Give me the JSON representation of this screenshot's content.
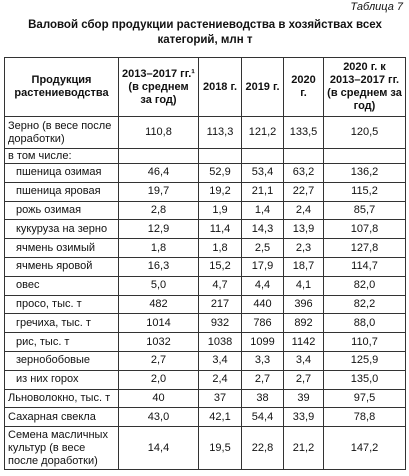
{
  "header": {
    "label": "Таблица 7",
    "title": "Валовой сбор продукции растениеводства в хозяйствах всех категорий, млн т"
  },
  "table": {
    "columns": [
      "Продукция растениеводства",
      "2013–2017 гг.¹ (в среднем за год)",
      "2018 г.",
      "2019 г.",
      "2020 г.",
      "2020 г. к 2013–2017 гг. (в среднем за год)"
    ],
    "rows": [
      [
        "Зерно (в весе после доработки)",
        "110,8",
        "113,3",
        "121,2",
        "133,5",
        "120,5"
      ],
      [
        "в том числе:"
      ],
      [
        "пшеница озимая",
        "46,4",
        "52,9",
        "53,4",
        "63,2",
        "136,2"
      ],
      [
        "пшеница яровая",
        "19,7",
        "19,2",
        "21,1",
        "22,7",
        "115,2"
      ],
      [
        "рожь озимая",
        "2,8",
        "1,9",
        "1,4",
        "2,4",
        "85,7"
      ],
      [
        "кукуруза на зерно",
        "12,9",
        "11,4",
        "14,3",
        "13,9",
        "107,8"
      ],
      [
        "ячмень озимый",
        "1,8",
        "1,8",
        "2,5",
        "2,3",
        "127,8"
      ],
      [
        "ячмень яровой",
        "16,3",
        "15,2",
        "17,9",
        "18,7",
        "114,7"
      ],
      [
        "овес",
        "5,0",
        "4,7",
        "4,4",
        "4,1",
        "82,0"
      ],
      [
        "просо, тыс. т",
        "482",
        "217",
        "440",
        "396",
        "82,2"
      ],
      [
        "гречиха, тыс. т",
        "1014",
        "932",
        "786",
        "892",
        "88,0"
      ],
      [
        "рис, тыс. т",
        "1032",
        "1038",
        "1099",
        "1142",
        "110,7"
      ],
      [
        "зернобобовые",
        "2,7",
        "3,4",
        "3,3",
        "3,4",
        "125,9"
      ],
      [
        "из них горох",
        "2,0",
        "2,4",
        "2,7",
        "2,7",
        "135,0"
      ],
      [
        "Льноволокно, тыс. т",
        "40",
        "37",
        "38",
        "39",
        "97,5"
      ],
      [
        "Сахарная свекла",
        "43,0",
        "42,1",
        "54,4",
        "33,9",
        "78,8"
      ],
      [
        "Семена масличных культур (в весе после доработки)",
        "14,4",
        "19,5",
        "22,8",
        "21,2",
        "147,2"
      ]
    ]
  }
}
